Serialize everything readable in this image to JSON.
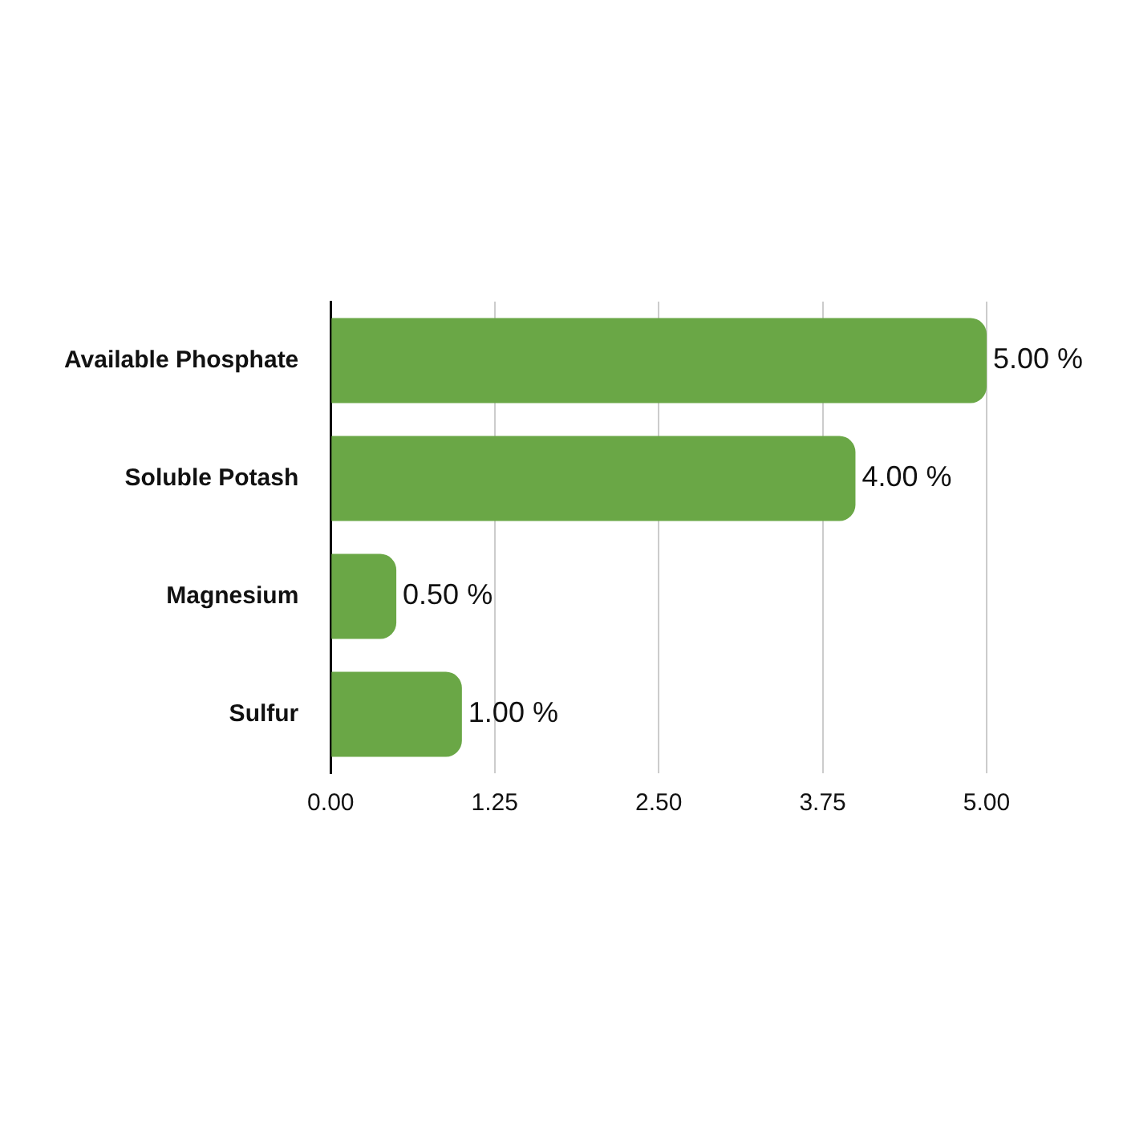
{
  "chart_data": {
    "type": "bar",
    "orientation": "horizontal",
    "categories": [
      "Available Phosphate",
      "Soluble Potash",
      "Magnesium",
      "Sulfur"
    ],
    "values": [
      5.0,
      4.0,
      0.5,
      1.0
    ],
    "value_labels": [
      "5.00 %",
      "4.00 %",
      "0.50 %",
      "1.00 %"
    ],
    "color": "#6aa746",
    "xlim": [
      0,
      5
    ],
    "xticks": [
      {
        "value": 0,
        "label": "0.00"
      },
      {
        "value": 1.25,
        "label": "1.25"
      },
      {
        "value": 2.5,
        "label": "2.50"
      },
      {
        "value": 3.75,
        "label": "3.75"
      },
      {
        "value": 5,
        "label": "5.00"
      }
    ],
    "grid": "x"
  }
}
